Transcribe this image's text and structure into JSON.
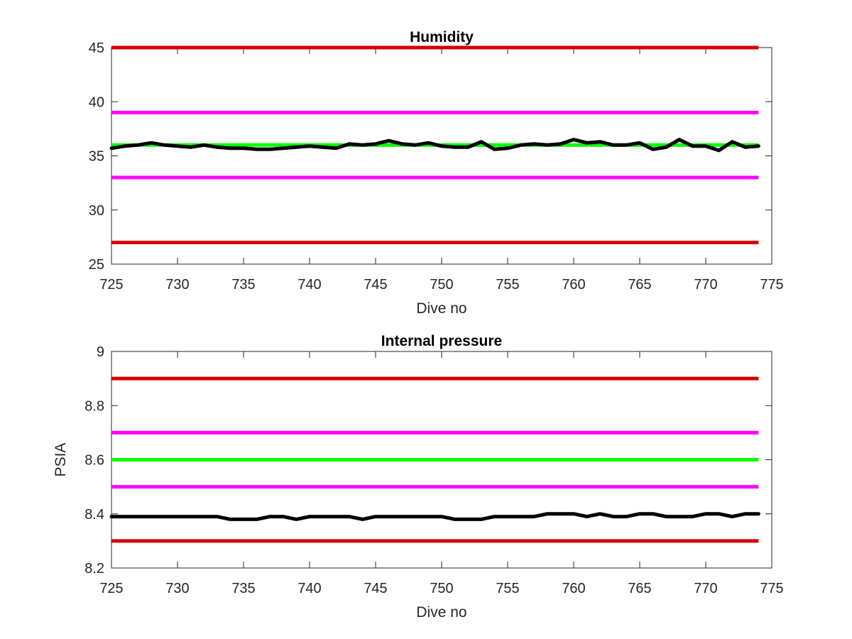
{
  "chart_data": [
    {
      "type": "line",
      "title": "Humidity",
      "xlabel": "Dive no",
      "ylabel": "",
      "xlim": [
        725,
        775
      ],
      "ylim": [
        25,
        45
      ],
      "xticks": [
        "725",
        "730",
        "735",
        "740",
        "745",
        "750",
        "755",
        "760",
        "765",
        "770",
        "775"
      ],
      "yticks": [
        "25",
        "30",
        "35",
        "40",
        "45"
      ],
      "grid": false,
      "box": true,
      "threshold_lines": [
        {
          "value": 45,
          "color": "#d40000"
        },
        {
          "value": 39,
          "color": "#ff00ff"
        },
        {
          "value": 36,
          "color": "#00ff00"
        },
        {
          "value": 33,
          "color": "#ff00ff"
        },
        {
          "value": 27,
          "color": "#d40000"
        }
      ],
      "series": [
        {
          "color": "#000000",
          "x": [
            725,
            726,
            727,
            728,
            729,
            730,
            731,
            732,
            733,
            734,
            735,
            736,
            737,
            738,
            739,
            740,
            741,
            742,
            743,
            744,
            745,
            746,
            747,
            748,
            749,
            750,
            751,
            752,
            753,
            754,
            755,
            756,
            757,
            758,
            759,
            760,
            761,
            762,
            763,
            764,
            765,
            766,
            767,
            768,
            769,
            770,
            771,
            772,
            773,
            774
          ],
          "y": [
            35.7,
            35.9,
            36.0,
            36.2,
            36.0,
            35.9,
            35.8,
            36.0,
            35.8,
            35.7,
            35.7,
            35.6,
            35.6,
            35.7,
            35.8,
            35.9,
            35.8,
            35.7,
            36.1,
            36.0,
            36.1,
            36.4,
            36.1,
            36.0,
            36.2,
            35.9,
            35.8,
            35.8,
            36.3,
            35.6,
            35.7,
            36.0,
            36.1,
            36.0,
            36.1,
            36.5,
            36.2,
            36.3,
            36.0,
            36.0,
            36.2,
            35.6,
            35.8,
            36.5,
            35.9,
            35.9,
            35.5,
            36.3,
            35.8,
            35.9
          ]
        }
      ]
    },
    {
      "type": "line",
      "title": "Internal pressure",
      "xlabel": "Dive no",
      "ylabel": "PSIA",
      "xlim": [
        725,
        775
      ],
      "ylim": [
        8.2,
        9
      ],
      "xticks": [
        "725",
        "730",
        "735",
        "740",
        "745",
        "750",
        "755",
        "760",
        "765",
        "770",
        "775"
      ],
      "yticks": [
        "8.2",
        "8.4",
        "8.6",
        "8.8",
        "9"
      ],
      "grid": false,
      "box": true,
      "threshold_lines": [
        {
          "value": 8.9,
          "color": "#d40000"
        },
        {
          "value": 8.7,
          "color": "#ff00ff"
        },
        {
          "value": 8.6,
          "color": "#00ff00"
        },
        {
          "value": 8.5,
          "color": "#ff00ff"
        },
        {
          "value": 8.3,
          "color": "#d40000"
        }
      ],
      "series": [
        {
          "color": "#000000",
          "x": [
            725,
            726,
            727,
            728,
            729,
            730,
            731,
            732,
            733,
            734,
            735,
            736,
            737,
            738,
            739,
            740,
            741,
            742,
            743,
            744,
            745,
            746,
            747,
            748,
            749,
            750,
            751,
            752,
            753,
            754,
            755,
            756,
            757,
            758,
            759,
            760,
            761,
            762,
            763,
            764,
            765,
            766,
            767,
            768,
            769,
            770,
            771,
            772,
            773,
            774
          ],
          "y": [
            8.39,
            8.39,
            8.39,
            8.39,
            8.39,
            8.39,
            8.39,
            8.39,
            8.39,
            8.38,
            8.38,
            8.38,
            8.39,
            8.39,
            8.38,
            8.39,
            8.39,
            8.39,
            8.39,
            8.38,
            8.39,
            8.39,
            8.39,
            8.39,
            8.39,
            8.39,
            8.38,
            8.38,
            8.38,
            8.39,
            8.39,
            8.39,
            8.39,
            8.4,
            8.4,
            8.4,
            8.39,
            8.4,
            8.39,
            8.39,
            8.4,
            8.4,
            8.39,
            8.39,
            8.39,
            8.4,
            8.4,
            8.39,
            8.4,
            8.4
          ]
        }
      ]
    }
  ]
}
